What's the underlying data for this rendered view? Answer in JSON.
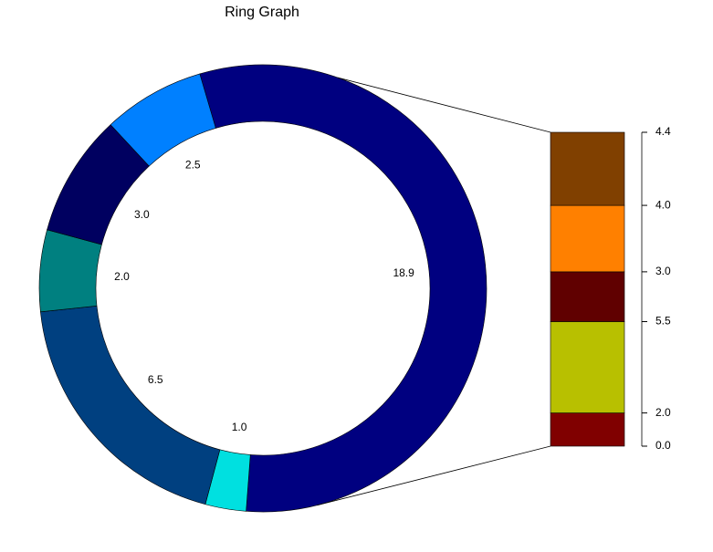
{
  "chart_data": {
    "type": "ring",
    "title": "Ring Graph",
    "values": [
      18.9,
      1.0,
      6.5,
      2.0,
      3.0,
      2.5
    ],
    "value_labels": [
      "18.9",
      "1.0",
      "6.5",
      "2.0",
      "3.0",
      "2.5"
    ],
    "colors": [
      "#000080",
      "#00e0e0",
      "#004080",
      "#008080",
      "#000060",
      "#0080ff"
    ],
    "breakdown": {
      "of": 0,
      "values": [
        2.0,
        5.5,
        3.0,
        4.0,
        4.4
      ],
      "value_labels": [
        "2.0",
        "5.5",
        "3.0",
        "4.0",
        "4.4"
      ],
      "colors": [
        "#800000",
        "#b8c000",
        "#600000",
        "#ff8000",
        "#804000"
      ],
      "base_tick": {
        "value": 0,
        "label": "0.0"
      }
    }
  }
}
